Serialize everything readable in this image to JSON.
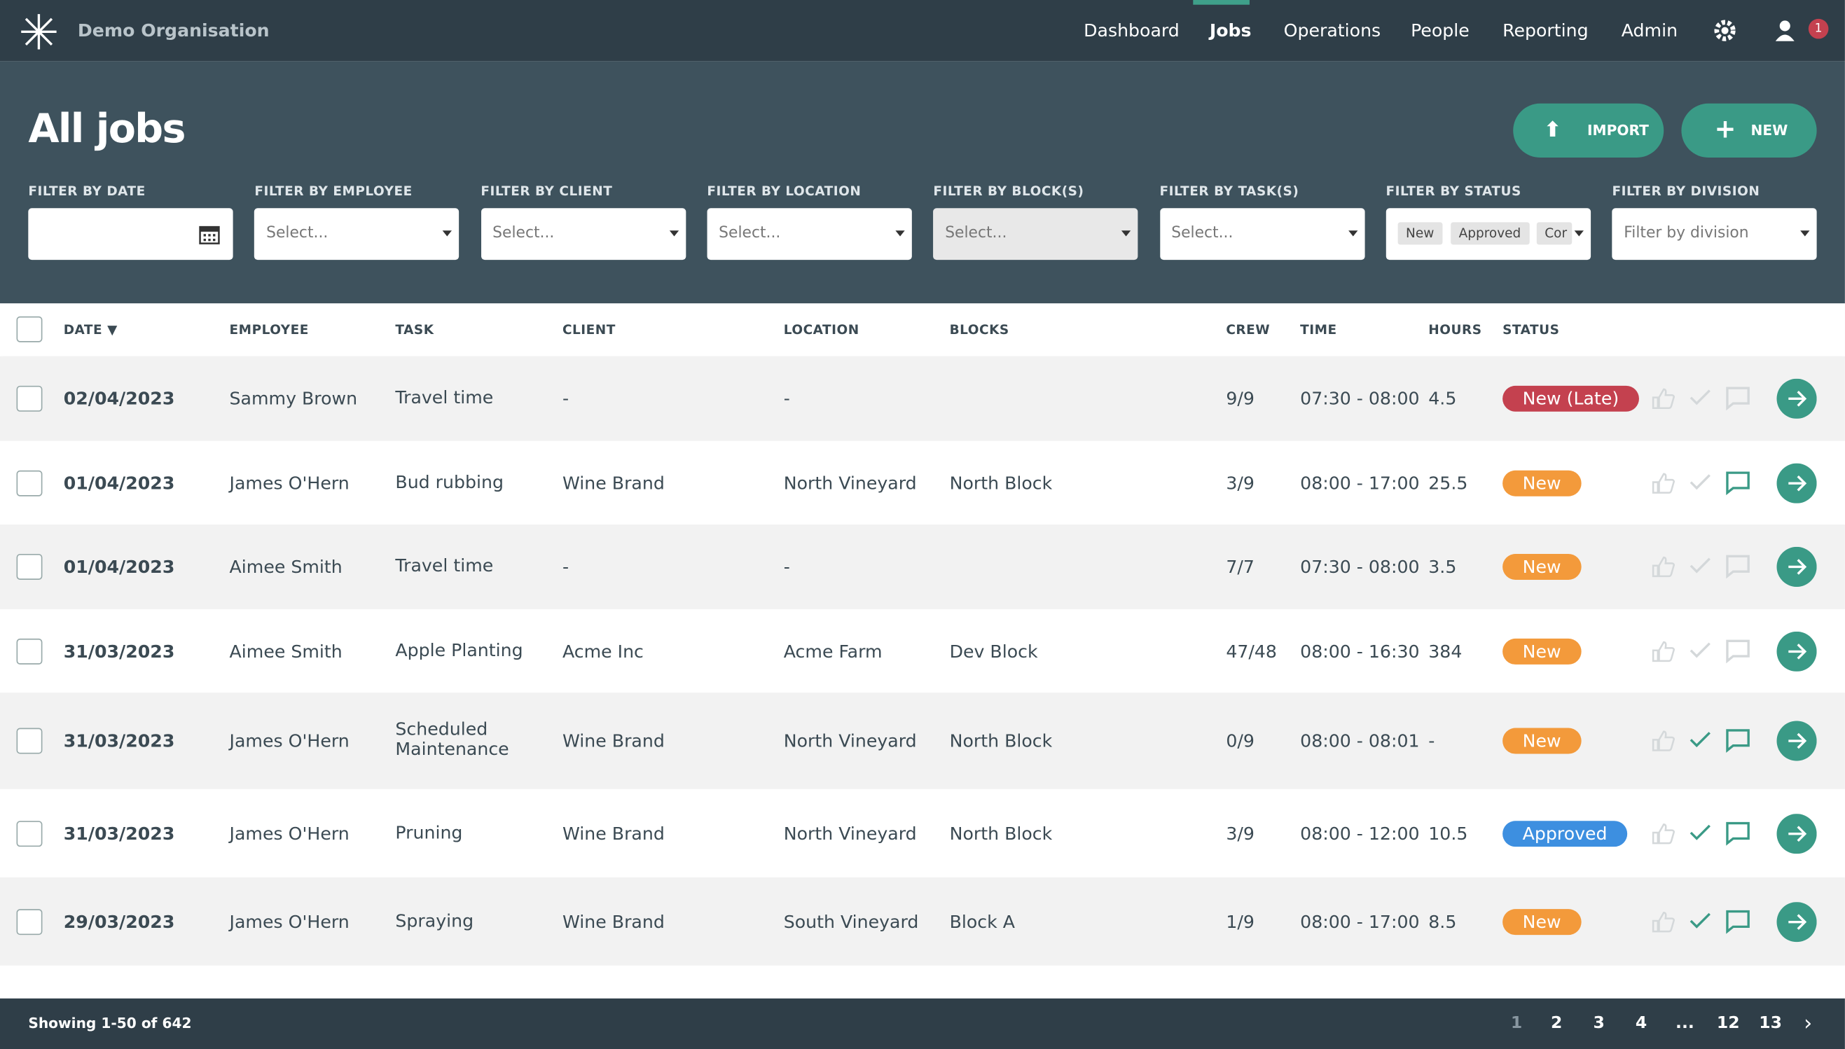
{
  "nav": {
    "org": "Demo Organisation",
    "links": [
      "Dashboard",
      "Jobs",
      "Operations",
      "People",
      "Reporting",
      "Admin"
    ],
    "notifications": "1"
  },
  "header": {
    "title": "All jobs",
    "buttons": [
      "IMPORT",
      "NEW"
    ]
  },
  "filters": [
    {
      "label": "FILTER BY DATE"
    },
    {
      "label": "FILTER BY EMPLOYEE",
      "placeholder": "Select..."
    },
    {
      "label": "FILTER BY CLIENT",
      "placeholder": "Select..."
    },
    {
      "label": "FILTER BY LOCATION",
      "placeholder": "Select..."
    },
    {
      "label": "FILTER BY BLOCK(S)",
      "placeholder": "Select..."
    },
    {
      "label": "FILTER BY TASK(S)",
      "placeholder": "Select..."
    },
    {
      "label": "FILTER BY STATUS",
      "chips": [
        "New",
        "Approved",
        "Cor"
      ]
    },
    {
      "label": "FILTER BY DIVISION",
      "placeholder": "Filter by division"
    }
  ],
  "table": {
    "columns": [
      "DATE ▼",
      "EMPLOYEE",
      "TASK",
      "CLIENT",
      "LOCATION",
      "BLOCKS",
      "CREW",
      "TIME",
      "HOURS",
      "STATUS"
    ],
    "rows": [
      [
        "02/04/2023",
        "Sammy Brown",
        "Travel time",
        "-",
        "-",
        null,
        "9/9",
        "07:30 - 08:00",
        "4.5",
        "New (Late)"
      ],
      [
        "01/04/2023",
        "James O'Hern",
        "Bud rubbing",
        "Wine Brand",
        "North Vineyard",
        "North Block",
        "3/9",
        "08:00 - 17:00",
        "25.5",
        "New"
      ],
      [
        "01/04/2023",
        "Aimee Smith",
        "Travel time",
        "-",
        "-",
        null,
        "7/7",
        "07:30 - 08:00",
        "3.5",
        "New"
      ],
      [
        "31/03/2023",
        "Aimee Smith",
        "Apple Planting",
        "Acme Inc",
        "Acme Farm",
        "Dev Block",
        "47/48",
        "08:00 - 16:30",
        "384",
        "New"
      ],
      [
        "31/03/2023",
        "James O'Hern",
        "Scheduled Maintenance",
        "Wine Brand",
        "North Vineyard",
        "North Block",
        "0/9",
        "08:00 - 08:01",
        "-",
        "New"
      ],
      [
        "31/03/2023",
        "James O'Hern",
        "Pruning",
        "Wine Brand",
        "North Vineyard",
        "North Block",
        "3/9",
        "08:00 - 12:00",
        "10.5",
        "Approved"
      ],
      [
        "29/03/2023",
        "James O'Hern",
        "Spraying",
        "Wine Brand",
        "South Vineyard",
        "Block A",
        "1/9",
        "08:00 - 17:00",
        "8.5",
        "New"
      ]
    ],
    "status_colors": [
      "#c4414f",
      "#f39a3b",
      "#f39a3b",
      "#f39a3b",
      "#f39a3b",
      "#3d8fe0",
      "#f39a3b"
    ]
  },
  "footer": {
    "showing": "Showing 1-50 of 642",
    "pages": [
      "1",
      "2",
      "3",
      "4",
      "...",
      "12",
      "13"
    ]
  }
}
